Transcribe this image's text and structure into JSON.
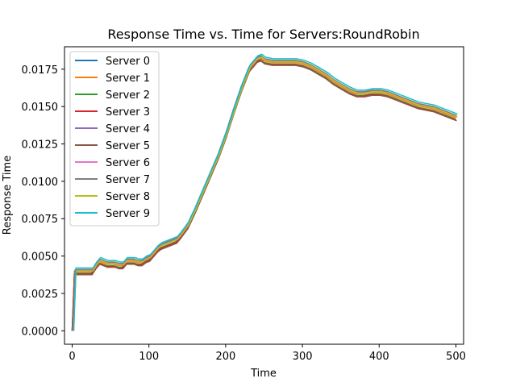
{
  "chart_data": {
    "type": "line",
    "title": "Response Time vs. Time for Servers:RoundRobin",
    "xlabel": "Time",
    "ylabel": "Response Time",
    "xlim": [
      -10,
      510
    ],
    "ylim": [
      -0.0009,
      0.019
    ],
    "xticks": [
      0,
      100,
      200,
      300,
      400,
      500
    ],
    "xtick_labels": [
      "0",
      "100",
      "200",
      "300",
      "400",
      "500"
    ],
    "yticks": [
      0.0,
      0.0025,
      0.005,
      0.0075,
      0.01,
      0.0125,
      0.015,
      0.0175
    ],
    "ytick_labels": [
      "0.0000",
      "0.0025",
      "0.0050",
      "0.0075",
      "0.0100",
      "0.0125",
      "0.0150",
      "0.0175"
    ],
    "grid": false,
    "legend_position": "top-left",
    "base_curve": {
      "x": [
        0,
        3,
        5,
        10,
        15,
        20,
        25,
        30,
        35,
        40,
        45,
        50,
        55,
        60,
        65,
        70,
        75,
        80,
        85,
        90,
        95,
        100,
        105,
        110,
        115,
        120,
        125,
        130,
        135,
        140,
        150,
        160,
        170,
        180,
        190,
        200,
        210,
        220,
        230,
        240,
        245,
        250,
        260,
        270,
        280,
        290,
        300,
        310,
        320,
        330,
        340,
        350,
        360,
        370,
        380,
        390,
        400,
        410,
        420,
        430,
        440,
        450,
        460,
        470,
        480,
        490,
        500
      ],
      "y": [
        0.0,
        0.004,
        0.004,
        0.004,
        0.004,
        0.004,
        0.004,
        0.0044,
        0.0047,
        0.0046,
        0.0045,
        0.0045,
        0.0045,
        0.0044,
        0.0044,
        0.0047,
        0.0047,
        0.0047,
        0.0046,
        0.0046,
        0.0048,
        0.0049,
        0.0052,
        0.0055,
        0.0057,
        0.0058,
        0.0059,
        0.006,
        0.0061,
        0.0064,
        0.0071,
        0.0082,
        0.0094,
        0.0106,
        0.0118,
        0.0132,
        0.0148,
        0.0163,
        0.0176,
        0.0182,
        0.0183,
        0.0181,
        0.018,
        0.018,
        0.018,
        0.018,
        0.0179,
        0.0177,
        0.0174,
        0.0171,
        0.0167,
        0.0164,
        0.0161,
        0.0159,
        0.0159,
        0.016,
        0.016,
        0.0159,
        0.0157,
        0.0155,
        0.0153,
        0.0151,
        0.015,
        0.0149,
        0.0147,
        0.0145,
        0.0143
      ]
    },
    "series": [
      {
        "name": "Server 0",
        "color": "#1f77b4",
        "offset": 0.0,
        "x_shift": 0
      },
      {
        "name": "Server 1",
        "color": "#ff7f0e",
        "offset": -5e-05,
        "x_shift": 0
      },
      {
        "name": "Server 2",
        "color": "#2ca02c",
        "offset": -0.00015,
        "x_shift": 0
      },
      {
        "name": "Server 3",
        "color": "#d62728",
        "offset": -0.0002,
        "x_shift": 0
      },
      {
        "name": "Server 4",
        "color": "#9467bd",
        "offset": 5e-05,
        "x_shift": 1
      },
      {
        "name": "Server 5",
        "color": "#8c564b",
        "offset": -0.00025,
        "x_shift": 1
      },
      {
        "name": "Server 6",
        "color": "#e377c2",
        "offset": 0.0,
        "x_shift": 1
      },
      {
        "name": "Server 7",
        "color": "#7f7f7f",
        "offset": 0.0001,
        "x_shift": 1
      },
      {
        "name": "Server 8",
        "color": "#bcbd22",
        "offset": 0.0,
        "x_shift": 2
      },
      {
        "name": "Server 9",
        "color": "#17becf",
        "offset": 0.0002,
        "x_shift": 2
      }
    ]
  }
}
